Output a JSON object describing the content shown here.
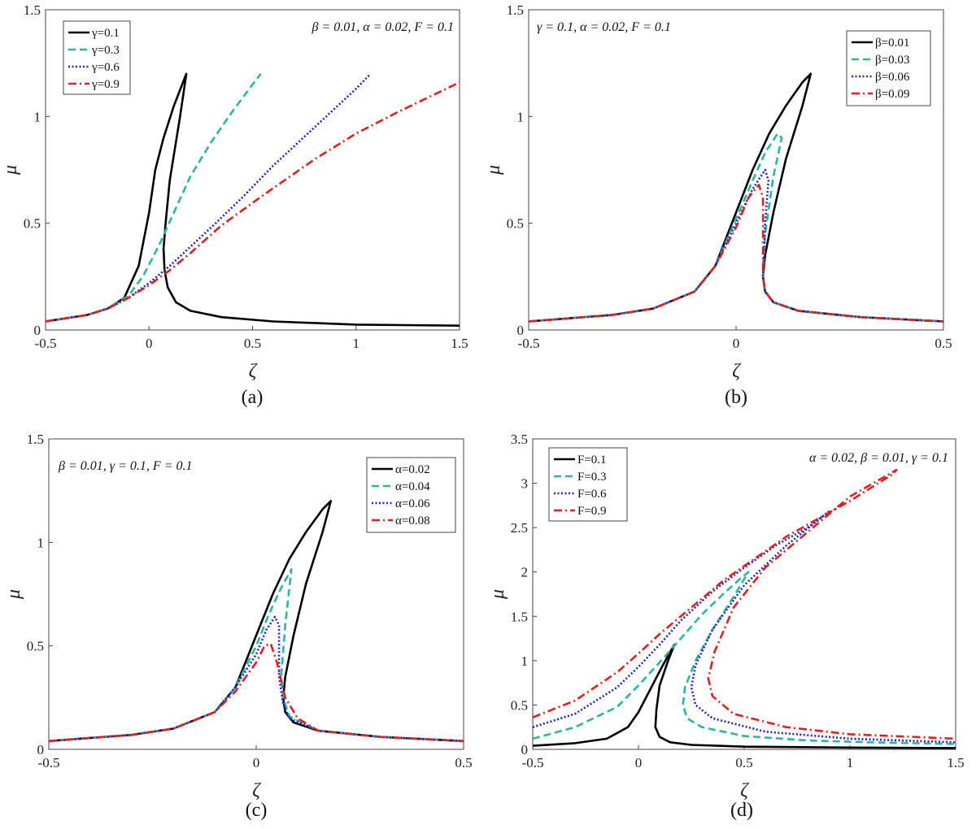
{
  "chart_data": [
    {
      "type": "line",
      "caption": "(a)",
      "xlabel": "ζ",
      "ylabel": "μ",
      "xlim": [
        -0.5,
        1.5
      ],
      "ylim": [
        0,
        1.5
      ],
      "xticks": [
        "-0.5",
        "0",
        "0.5",
        "1",
        "1.5"
      ],
      "yticks": [
        "0",
        "0.5",
        "1",
        "1.5"
      ],
      "annotation": "β = 0.01, α = 0.02, F = 0.1",
      "legend_position": "top-left",
      "series": [
        {
          "name": "γ=0.1",
          "color": "#000000",
          "style": "solid",
          "x": [
            -0.5,
            -0.3,
            -0.2,
            -0.12,
            -0.05,
            0.0,
            0.03,
            0.07,
            0.12,
            0.16,
            0.18,
            0.15,
            0.1,
            0.08,
            0.07,
            0.075,
            0.09,
            0.13,
            0.2,
            0.35,
            0.6,
            1.0,
            1.5
          ],
          "y": [
            0.04,
            0.07,
            0.1,
            0.15,
            0.3,
            0.55,
            0.75,
            0.9,
            1.05,
            1.15,
            1.2,
            1.0,
            0.7,
            0.5,
            0.38,
            0.28,
            0.2,
            0.13,
            0.09,
            0.06,
            0.04,
            0.025,
            0.02
          ]
        },
        {
          "name": "γ=0.3",
          "color": "#2ab7a0",
          "style": "dashed",
          "x": [
            -0.5,
            -0.3,
            -0.2,
            -0.1,
            -0.03,
            0.05,
            0.12,
            0.2,
            0.3,
            0.4,
            0.5,
            0.54
          ],
          "y": [
            0.04,
            0.07,
            0.1,
            0.16,
            0.25,
            0.4,
            0.55,
            0.72,
            0.88,
            1.02,
            1.15,
            1.2
          ]
        },
        {
          "name": "γ=0.6",
          "color": "#2222cc",
          "style": "dotted",
          "x": [
            -0.5,
            -0.3,
            -0.2,
            -0.1,
            0.0,
            0.1,
            0.2,
            0.3,
            0.45,
            0.6,
            0.8,
            1.0,
            1.07
          ],
          "y": [
            0.04,
            0.07,
            0.1,
            0.15,
            0.22,
            0.3,
            0.39,
            0.48,
            0.62,
            0.77,
            0.95,
            1.13,
            1.2
          ]
        },
        {
          "name": "γ=0.9",
          "color": "#e02020",
          "style": "dashdot",
          "x": [
            -0.5,
            -0.3,
            -0.2,
            -0.1,
            0.0,
            0.1,
            0.2,
            0.35,
            0.55,
            0.8,
            1.0,
            1.2,
            1.5
          ],
          "y": [
            0.04,
            0.07,
            0.1,
            0.15,
            0.21,
            0.28,
            0.36,
            0.49,
            0.63,
            0.8,
            0.92,
            1.02,
            1.16
          ]
        }
      ]
    },
    {
      "type": "line",
      "caption": "(b)",
      "xlabel": "ζ",
      "ylabel": "μ",
      "xlim": [
        -0.5,
        0.5
      ],
      "ylim": [
        0,
        1.5
      ],
      "xticks": [
        "-0.5",
        "0",
        "0.5"
      ],
      "yticks": [
        "0",
        "0.5",
        "1",
        "1.5"
      ],
      "annotation": "γ = 0.1, α = 0.02, F = 0.1",
      "legend_position": "top-right",
      "series": [
        {
          "name": "β=0.01",
          "color": "#000000",
          "style": "solid",
          "x": [
            -0.5,
            -0.3,
            -0.2,
            -0.1,
            -0.05,
            0.0,
            0.04,
            0.08,
            0.12,
            0.16,
            0.18,
            0.16,
            0.12,
            0.09,
            0.07,
            0.065,
            0.07,
            0.09,
            0.15,
            0.3,
            0.5
          ],
          "y": [
            0.04,
            0.07,
            0.1,
            0.18,
            0.3,
            0.55,
            0.75,
            0.92,
            1.05,
            1.16,
            1.2,
            1.05,
            0.8,
            0.55,
            0.35,
            0.25,
            0.18,
            0.13,
            0.09,
            0.06,
            0.04
          ]
        },
        {
          "name": "β=0.03",
          "color": "#2ab7a0",
          "style": "dashed",
          "x": [
            -0.5,
            -0.3,
            -0.2,
            -0.1,
            -0.05,
            0.0,
            0.04,
            0.07,
            0.1,
            0.11,
            0.09,
            0.07,
            0.065,
            0.07,
            0.09,
            0.15,
            0.3,
            0.5
          ],
          "y": [
            0.04,
            0.07,
            0.1,
            0.18,
            0.3,
            0.52,
            0.7,
            0.83,
            0.92,
            0.9,
            0.72,
            0.45,
            0.25,
            0.18,
            0.13,
            0.09,
            0.06,
            0.04
          ]
        },
        {
          "name": "β=0.06",
          "color": "#2222cc",
          "style": "dotted",
          "x": [
            -0.5,
            -0.3,
            -0.2,
            -0.1,
            -0.05,
            0.0,
            0.04,
            0.07,
            0.078,
            0.07,
            0.065,
            0.07,
            0.09,
            0.15,
            0.3,
            0.5
          ],
          "y": [
            0.04,
            0.07,
            0.1,
            0.18,
            0.3,
            0.5,
            0.66,
            0.75,
            0.7,
            0.5,
            0.25,
            0.18,
            0.13,
            0.09,
            0.06,
            0.04
          ]
        },
        {
          "name": "β=0.09",
          "color": "#e02020",
          "style": "dashdot",
          "x": [
            -0.5,
            -0.3,
            -0.2,
            -0.1,
            -0.05,
            0.0,
            0.03,
            0.055,
            0.065,
            0.065,
            0.07,
            0.09,
            0.15,
            0.3,
            0.5
          ],
          "y": [
            0.04,
            0.07,
            0.1,
            0.18,
            0.3,
            0.48,
            0.62,
            0.68,
            0.62,
            0.25,
            0.18,
            0.13,
            0.09,
            0.06,
            0.04
          ]
        }
      ]
    },
    {
      "type": "line",
      "caption": "(c)",
      "xlabel": "ζ",
      "ylabel": "μ",
      "xlim": [
        -0.5,
        0.5
      ],
      "ylim": [
        0,
        1.5
      ],
      "xticks": [
        "-0.5",
        "0",
        "0.5"
      ],
      "yticks": [
        "0",
        "0.5",
        "1",
        "1.5"
      ],
      "annotation": "β = 0.01, γ = 0.1, F = 0.1",
      "legend_position": "top-right",
      "series": [
        {
          "name": "α=0.02",
          "color": "#000000",
          "style": "solid",
          "x": [
            -0.5,
            -0.3,
            -0.2,
            -0.1,
            -0.05,
            0.0,
            0.04,
            0.08,
            0.12,
            0.16,
            0.18,
            0.16,
            0.12,
            0.09,
            0.07,
            0.065,
            0.07,
            0.09,
            0.15,
            0.3,
            0.5
          ],
          "y": [
            0.04,
            0.07,
            0.1,
            0.18,
            0.3,
            0.55,
            0.75,
            0.92,
            1.05,
            1.16,
            1.2,
            1.05,
            0.8,
            0.55,
            0.35,
            0.25,
            0.18,
            0.13,
            0.09,
            0.06,
            0.04
          ]
        },
        {
          "name": "α=0.04",
          "color": "#2ab7a0",
          "style": "dashed",
          "x": [
            -0.5,
            -0.3,
            -0.2,
            -0.1,
            -0.05,
            0.0,
            0.03,
            0.06,
            0.085,
            0.07,
            0.06,
            0.065,
            0.08,
            0.15,
            0.3,
            0.5
          ],
          "y": [
            0.04,
            0.07,
            0.1,
            0.18,
            0.3,
            0.5,
            0.65,
            0.78,
            0.87,
            0.6,
            0.35,
            0.25,
            0.16,
            0.09,
            0.06,
            0.04
          ]
        },
        {
          "name": "α=0.06",
          "color": "#2222cc",
          "style": "dotted",
          "x": [
            -0.5,
            -0.3,
            -0.2,
            -0.1,
            -0.05,
            0.0,
            0.025,
            0.045,
            0.055,
            0.055,
            0.065,
            0.08,
            0.15,
            0.3,
            0.5
          ],
          "y": [
            0.04,
            0.07,
            0.1,
            0.18,
            0.3,
            0.46,
            0.58,
            0.64,
            0.6,
            0.35,
            0.22,
            0.15,
            0.09,
            0.06,
            0.04
          ]
        },
        {
          "name": "α=0.08",
          "color": "#e02020",
          "style": "dashdot",
          "x": [
            -0.5,
            -0.3,
            -0.2,
            -0.1,
            -0.05,
            0.0,
            0.02,
            0.035,
            0.05,
            0.07,
            0.1,
            0.15,
            0.3,
            0.5
          ],
          "y": [
            0.04,
            0.07,
            0.1,
            0.18,
            0.28,
            0.42,
            0.5,
            0.51,
            0.42,
            0.25,
            0.15,
            0.09,
            0.06,
            0.04
          ]
        }
      ]
    },
    {
      "type": "line",
      "caption": "(d)",
      "xlabel": "ζ",
      "ylabel": "μ",
      "xlim": [
        -0.5,
        1.5
      ],
      "ylim": [
        0,
        3.5
      ],
      "xticks": [
        "-0.5",
        "0",
        "0.5",
        "1",
        "1.5"
      ],
      "yticks": [
        "0",
        "0.5",
        "1",
        "1.5",
        "2",
        "2.5",
        "3",
        "3.5"
      ],
      "annotation": "α = 0.02, β = 0.01, γ = 0.1",
      "legend_position": "top-left",
      "series": [
        {
          "name": "F=0.1",
          "color": "#000000",
          "style": "solid",
          "x": [
            -0.5,
            -0.3,
            -0.15,
            -0.05,
            0.0,
            0.05,
            0.1,
            0.15,
            0.17,
            0.14,
            0.1,
            0.085,
            0.08,
            0.1,
            0.15,
            0.25,
            0.5,
            1.0,
            1.5
          ],
          "y": [
            0.04,
            0.07,
            0.12,
            0.25,
            0.42,
            0.65,
            0.88,
            1.1,
            1.18,
            1.0,
            0.72,
            0.45,
            0.25,
            0.14,
            0.08,
            0.05,
            0.03,
            0.02,
            0.015
          ]
        },
        {
          "name": "F=0.3",
          "color": "#2ab7a0",
          "style": "dashed",
          "x": [
            -0.5,
            -0.3,
            -0.1,
            0.0,
            0.1,
            0.2,
            0.3,
            0.4,
            0.48,
            0.52,
            0.45,
            0.35,
            0.27,
            0.22,
            0.21,
            0.23,
            0.3,
            0.5,
            0.8,
            1.1,
            1.5
          ],
          "y": [
            0.12,
            0.25,
            0.48,
            0.72,
            0.98,
            1.25,
            1.52,
            1.75,
            1.92,
            2.0,
            1.72,
            1.35,
            1.0,
            0.7,
            0.5,
            0.35,
            0.25,
            0.15,
            0.1,
            0.08,
            0.06
          ]
        },
        {
          "name": "F=0.6",
          "color": "#2222cc",
          "style": "dotted",
          "x": [
            -0.5,
            -0.3,
            -0.1,
            0.0,
            0.1,
            0.2,
            0.35,
            0.5,
            0.65,
            0.8,
            0.9,
            0.7,
            0.5,
            0.35,
            0.27,
            0.25,
            0.27,
            0.35,
            0.6,
            1.0,
            1.5
          ],
          "y": [
            0.25,
            0.4,
            0.7,
            0.93,
            1.18,
            1.45,
            1.78,
            2.05,
            2.3,
            2.5,
            2.68,
            2.3,
            1.85,
            1.35,
            0.95,
            0.7,
            0.5,
            0.35,
            0.2,
            0.12,
            0.08
          ]
        },
        {
          "name": "F=0.9",
          "color": "#e02020",
          "style": "dashdot",
          "x": [
            -0.5,
            -0.3,
            -0.1,
            0.0,
            0.1,
            0.25,
            0.4,
            0.55,
            0.7,
            0.85,
            1.0,
            1.2,
            1.22,
            1.0,
            0.8,
            0.6,
            0.45,
            0.36,
            0.33,
            0.35,
            0.45,
            0.7,
            1.0,
            1.5
          ],
          "y": [
            0.36,
            0.55,
            0.87,
            1.08,
            1.3,
            1.6,
            1.9,
            2.15,
            2.4,
            2.6,
            2.8,
            3.1,
            3.15,
            2.85,
            2.45,
            2.05,
            1.6,
            1.1,
            0.8,
            0.6,
            0.4,
            0.25,
            0.17,
            0.12
          ]
        }
      ]
    }
  ]
}
